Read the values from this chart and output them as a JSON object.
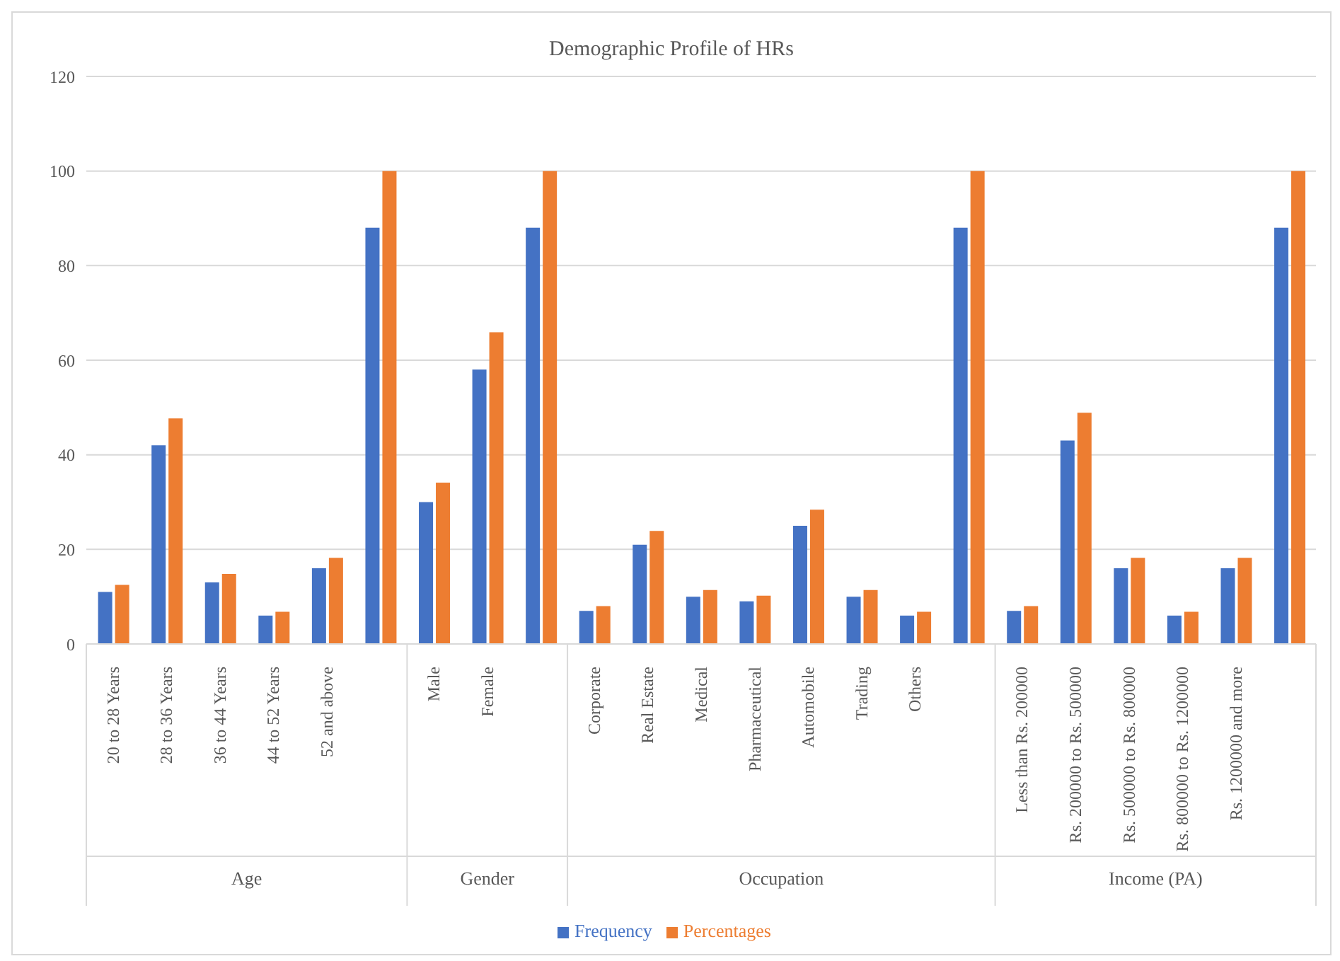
{
  "chart_data": {
    "type": "bar",
    "title": "Demographic Profile of HRs",
    "categories": [
      "20 to 28 Years",
      "28 to 36 Years",
      "36 to 44 Years",
      "44 to 52 Years",
      "52 and above",
      null,
      "Male",
      "Female",
      null,
      "Corporate",
      "Real Estate",
      "Medical",
      "Pharmaceutical",
      "Automobile",
      "Trading",
      "Others",
      null,
      "Less than Rs. 200000",
      "Rs. 200000 to Rs. 500000",
      "Rs. 500000 to Rs. 800000",
      "Rs. 800000 to Rs. 1200000",
      "Rs. 1200000 and more",
      null
    ],
    "series": [
      {
        "name": "Frequency",
        "color": "#4472c4",
        "values": [
          11,
          42,
          13,
          6,
          16,
          88,
          30,
          58,
          88,
          7,
          21,
          10,
          9,
          25,
          10,
          6,
          88,
          7,
          43,
          16,
          6,
          16,
          88
        ]
      },
      {
        "name": "Percentages",
        "color": "#ed7d31",
        "values": [
          12.5,
          47.7,
          14.8,
          6.8,
          18.2,
          100,
          34.1,
          65.9,
          100,
          8,
          23.9,
          11.4,
          10.2,
          28.4,
          11.4,
          6.8,
          100,
          8,
          48.9,
          18.2,
          6.8,
          18.2,
          100
        ]
      }
    ],
    "annotations": [
      "Age",
      "Gender",
      "Occupation",
      "Income (PA)"
    ],
    "ylim": [
      0,
      120
    ],
    "yticks": [
      0,
      20,
      40,
      60,
      80,
      100,
      120
    ],
    "grid": "y",
    "legend": "bottom"
  }
}
